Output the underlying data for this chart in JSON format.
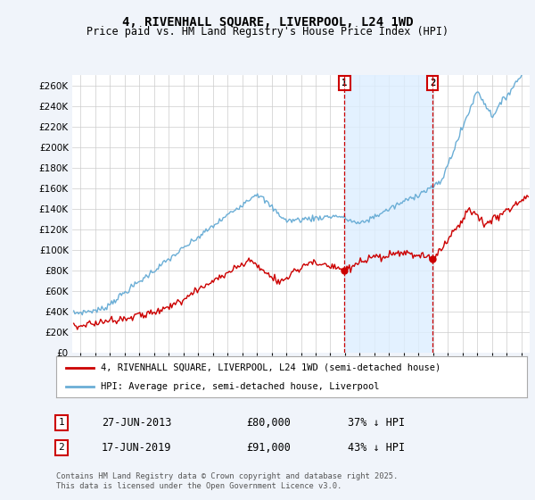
{
  "title": "4, RIVENHALL SQUARE, LIVERPOOL, L24 1WD",
  "subtitle": "Price paid vs. HM Land Registry's House Price Index (HPI)",
  "ylim": [
    0,
    270000
  ],
  "yticks": [
    0,
    20000,
    40000,
    60000,
    80000,
    100000,
    120000,
    140000,
    160000,
    180000,
    200000,
    220000,
    240000,
    260000
  ],
  "hpi_color": "#6baed6",
  "price_color": "#cc0000",
  "vline_color": "#cc0000",
  "span_color": "#ddeeff",
  "annotation1": {
    "label": "1",
    "t": 2013.46,
    "price": 80000,
    "text": "27-JUN-2013",
    "amount": "£80,000",
    "pct": "37% ↓ HPI"
  },
  "annotation2": {
    "label": "2",
    "t": 2019.46,
    "price": 91000,
    "text": "17-JUN-2019",
    "amount": "£91,000",
    "pct": "43% ↓ HPI"
  },
  "legend_price_label": "4, RIVENHALL SQUARE, LIVERPOOL, L24 1WD (semi-detached house)",
  "legend_hpi_label": "HPI: Average price, semi-detached house, Liverpool",
  "footer": "Contains HM Land Registry data © Crown copyright and database right 2025.\nThis data is licensed under the Open Government Licence v3.0.",
  "background_color": "#f0f4fa",
  "plot_bg_color": "#ffffff",
  "grid_color": "#cccccc",
  "title_fontsize": 10,
  "subtitle_fontsize": 8.5
}
